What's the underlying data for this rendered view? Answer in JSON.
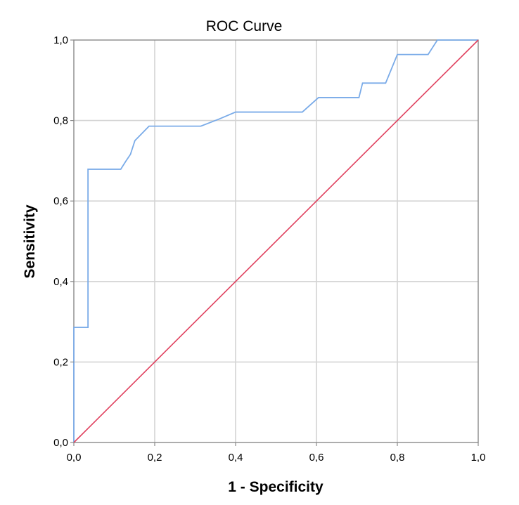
{
  "chart_data": {
    "type": "line",
    "title": "ROC Curve",
    "xlabel": "1 - Specificity",
    "ylabel": "Sensitivity",
    "xlim": [
      0,
      1
    ],
    "ylim": [
      0,
      1
    ],
    "grid": true,
    "x_ticks": [
      "0,0",
      "0,2",
      "0,4",
      "0,6",
      "0,8",
      "1,0"
    ],
    "y_ticks": [
      "0,0",
      "0,2",
      "0,4",
      "0,6",
      "0,8",
      "1,0"
    ],
    "series": [
      {
        "color": "#7aabe8",
        "points": [
          [
            0.0,
            0.0
          ],
          [
            0.0,
            0.286
          ],
          [
            0.035,
            0.286
          ],
          [
            0.035,
            0.679
          ],
          [
            0.116,
            0.679
          ],
          [
            0.128,
            0.698
          ],
          [
            0.14,
            0.716
          ],
          [
            0.151,
            0.75
          ],
          [
            0.186,
            0.786
          ],
          [
            0.314,
            0.786
          ],
          [
            0.36,
            0.804
          ],
          [
            0.4,
            0.821
          ],
          [
            0.565,
            0.821
          ],
          [
            0.605,
            0.857
          ],
          [
            0.705,
            0.857
          ],
          [
            0.714,
            0.893
          ],
          [
            0.771,
            0.893
          ],
          [
            0.8,
            0.964
          ],
          [
            0.876,
            0.964
          ],
          [
            0.899,
            1.0
          ],
          [
            1.0,
            1.0
          ]
        ]
      },
      {
        "color": "#e0405e",
        "points": [
          [
            0.0,
            0.0
          ],
          [
            1.0,
            1.0
          ]
        ]
      }
    ]
  }
}
